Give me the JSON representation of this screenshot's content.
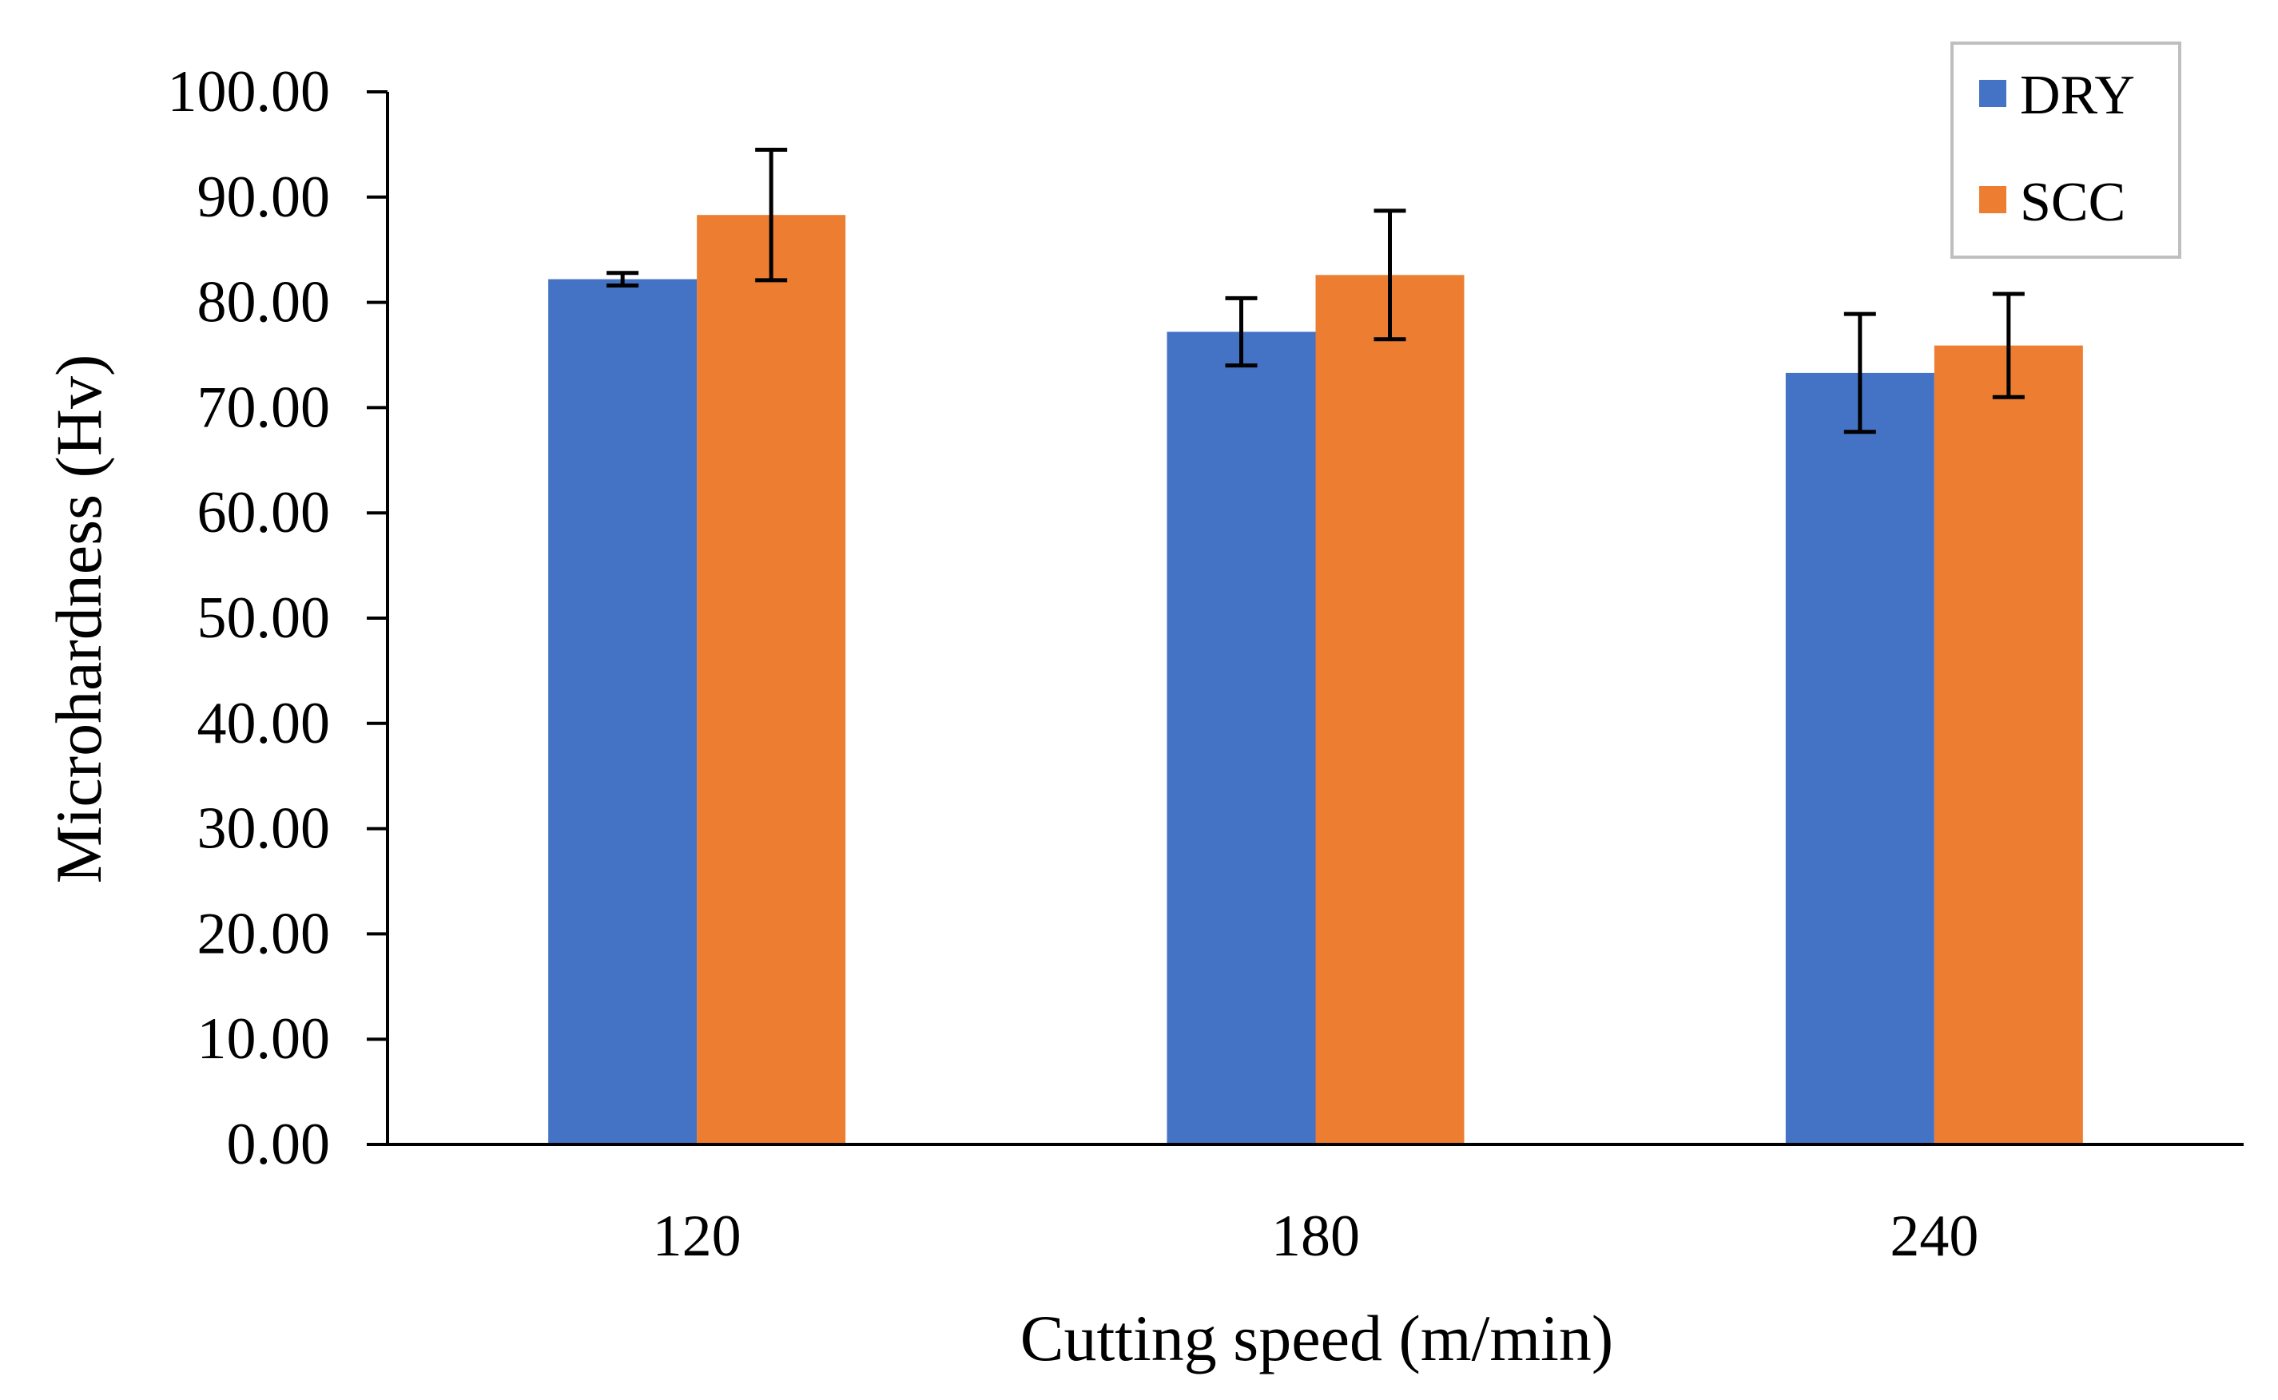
{
  "chart_data": {
    "type": "bar",
    "title": "",
    "xlabel": "Cutting speed (m/min)",
    "ylabel": "Microhardness (Hv)",
    "categories": [
      "120",
      "180",
      "240"
    ],
    "ylim": [
      0,
      100
    ],
    "ytick_values": [
      0,
      10,
      20,
      30,
      40,
      50,
      60,
      70,
      80,
      90,
      100
    ],
    "ytick_labels": [
      "0.00",
      "10.00",
      "20.00",
      "30.00",
      "40.00",
      "50.00",
      "60.00",
      "70.00",
      "80.00",
      "90.00",
      "100.00"
    ],
    "grid": false,
    "legend_position": "top-right",
    "series": [
      {
        "name": "DRY",
        "color": "#4472C4",
        "values": [
          82.2,
          77.2,
          73.3
        ],
        "errors": [
          0.6,
          3.2,
          5.6
        ]
      },
      {
        "name": "SCC",
        "color": "#ED7D31",
        "values": [
          88.3,
          82.6,
          75.9
        ],
        "errors": [
          6.2,
          6.1,
          4.9
        ]
      }
    ]
  }
}
